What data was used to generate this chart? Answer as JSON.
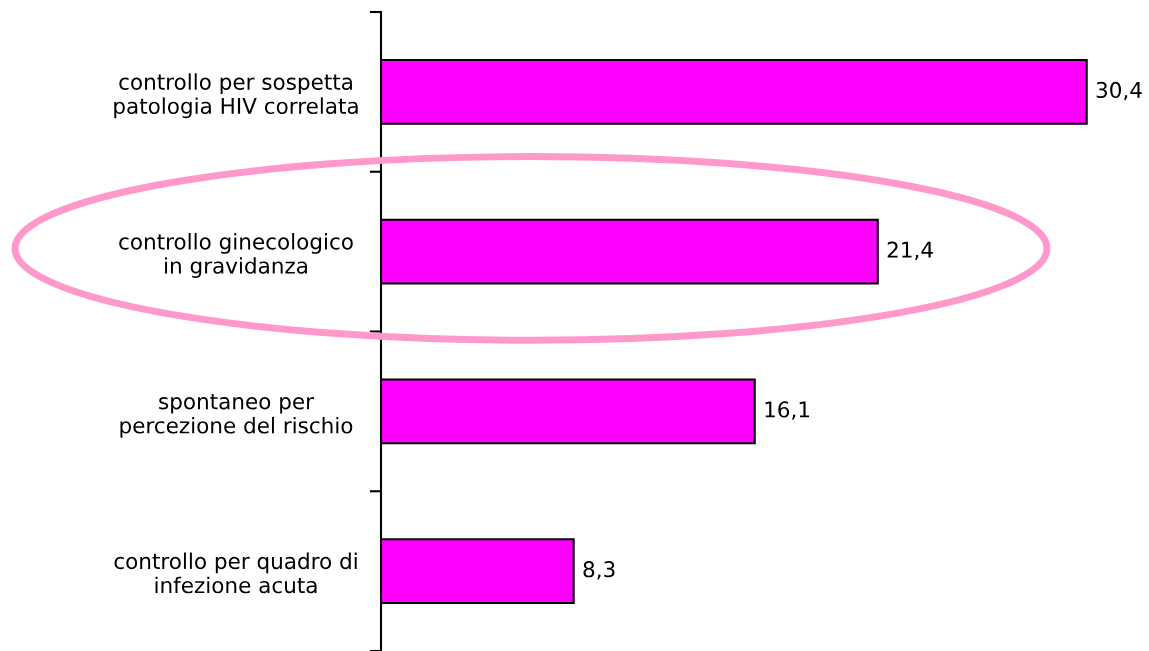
{
  "chart_data": {
    "type": "bar",
    "orientation": "horizontal",
    "categories": [
      "controllo per sospetta\npatologia HIV correlata",
      "controllo ginecologico\nin gravidanza",
      "spontaneo per\npercezione del rischio",
      "controllo per quadro di\ninfezione acuta"
    ],
    "values": [
      30.4,
      21.4,
      16.1,
      8.3
    ],
    "color": "#ff00ff",
    "value_labels": [
      "30,4",
      "21,4",
      "16,1",
      "8,3"
    ],
    "tick_labels": "y"
  }
}
